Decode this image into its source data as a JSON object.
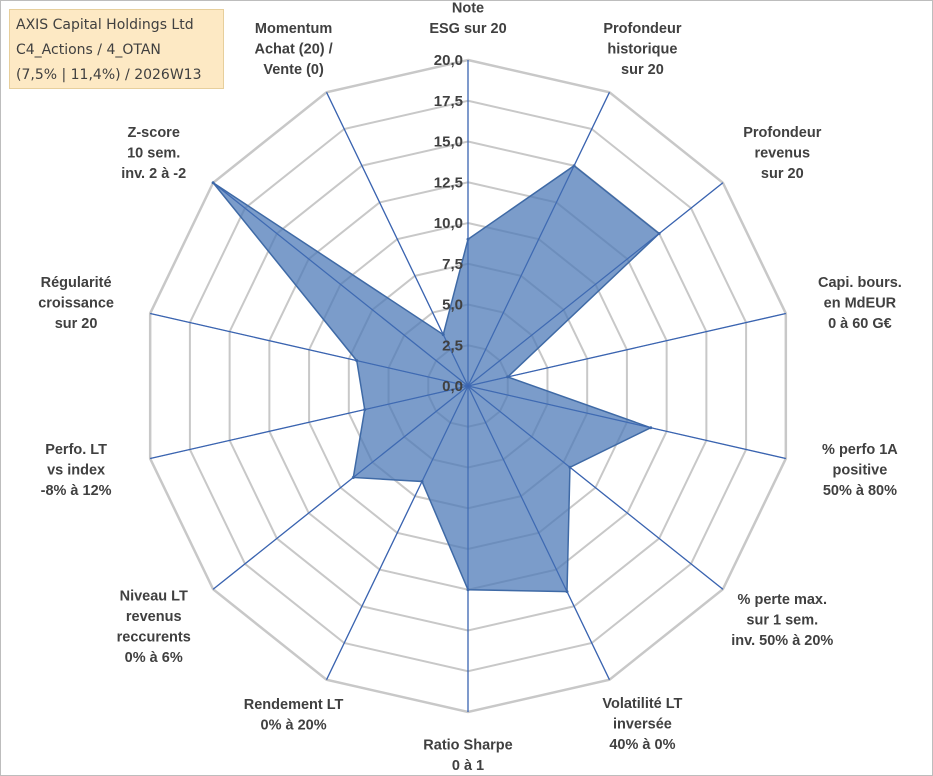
{
  "header": {
    "line1": "AXIS Capital Holdings Ltd",
    "line2": "C4_Actions / 4_OTAN",
    "line3": "(7,5% | 11,4%) / 2026W13"
  },
  "chart_data": {
    "type": "radar",
    "title": "AXIS Capital Holdings Ltd",
    "rmin": 0,
    "rmax": 20,
    "tick_step": 2.5,
    "ticks": [
      "0,0",
      "2,5",
      "5,0",
      "7,5",
      "10,0",
      "12,5",
      "15,0",
      "17,5",
      "20,0"
    ],
    "categories": [
      [
        "Note",
        "ESG sur 20"
      ],
      [
        "Profondeur",
        "historique",
        "sur 20"
      ],
      [
        "Profondeur",
        "revenus",
        "sur 20"
      ],
      [
        "Capi. bours.",
        "en MdEUR",
        "0 à 60 G€"
      ],
      [
        "% perfo 1A",
        "positive",
        "50% à 80%"
      ],
      [
        "% perte max.",
        "sur 1 sem.",
        "inv. 50% à 20%"
      ],
      [
        "Volatilité LT",
        "inversée",
        "40% à 0%"
      ],
      [
        "Ratio Sharpe",
        "0 à 1"
      ],
      [
        "Rendement LT",
        "0% à 20%"
      ],
      [
        "Niveau LT",
        "revenus",
        "reccurents",
        "0% à 6%"
      ],
      [
        "Perfo. LT",
        "vs index",
        "-8% à 12%"
      ],
      [
        "Régularité",
        "croissance",
        "sur 20"
      ],
      [
        "Z-score",
        "10 sem.",
        "inv. 2 à -2"
      ],
      [
        "Momentum",
        "Achat (20) /",
        "Vente (0)"
      ]
    ],
    "series": [
      {
        "name": "AXIS Capital Holdings Ltd",
        "values": [
          9.0,
          15.0,
          15.0,
          2.5,
          11.5,
          8.0,
          14.0,
          12.5,
          6.5,
          9.0,
          6.5,
          7.0,
          20.0,
          3.5
        ]
      }
    ],
    "colors": {
      "fill": "#4f7bb8",
      "stroke": "#3f6aa6",
      "spokes": "#3b64b0",
      "grid": "#c8c8c8",
      "text": "#404040"
    }
  }
}
